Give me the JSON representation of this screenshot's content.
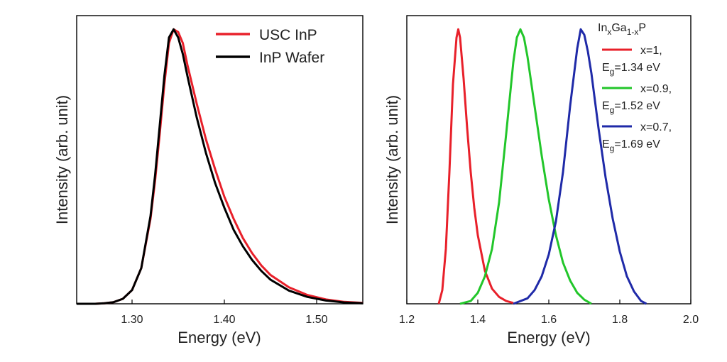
{
  "chart_data": [
    {
      "type": "line",
      "xlabel": "Energy (eV)",
      "ylabel": "Intensity (arb. unit)",
      "xlim": [
        1.24,
        1.55
      ],
      "ylim": [
        0,
        1.05
      ],
      "xticks": [
        1.3,
        1.4,
        1.5
      ],
      "xtick_labels": [
        "1.30",
        "1.40",
        "1.50"
      ],
      "yticks_shown": false,
      "legend": "top-right",
      "series": [
        {
          "name": "USC InP",
          "color": "#e8202a",
          "x": [
            1.24,
            1.26,
            1.27,
            1.28,
            1.29,
            1.3,
            1.31,
            1.32,
            1.325,
            1.33,
            1.335,
            1.34,
            1.345,
            1.35,
            1.355,
            1.36,
            1.37,
            1.38,
            1.39,
            1.4,
            1.41,
            1.42,
            1.43,
            1.44,
            1.45,
            1.47,
            1.49,
            1.51,
            1.53,
            1.55
          ],
          "y": [
            0.0,
            0.0,
            0.002,
            0.006,
            0.018,
            0.05,
            0.13,
            0.31,
            0.45,
            0.62,
            0.8,
            0.95,
            1.0,
            0.99,
            0.95,
            0.87,
            0.73,
            0.6,
            0.49,
            0.39,
            0.31,
            0.24,
            0.185,
            0.14,
            0.105,
            0.06,
            0.032,
            0.016,
            0.007,
            0.003
          ]
        },
        {
          "name": "InP Wafer",
          "color": "#000000",
          "x": [
            1.24,
            1.26,
            1.27,
            1.28,
            1.29,
            1.3,
            1.31,
            1.32,
            1.325,
            1.33,
            1.335,
            1.34,
            1.345,
            1.35,
            1.355,
            1.36,
            1.37,
            1.38,
            1.39,
            1.4,
            1.41,
            1.42,
            1.43,
            1.44,
            1.45,
            1.47,
            1.49,
            1.51,
            1.53,
            1.55
          ],
          "y": [
            0.0,
            0.0,
            0.002,
            0.006,
            0.018,
            0.05,
            0.13,
            0.32,
            0.47,
            0.65,
            0.83,
            0.97,
            1.0,
            0.97,
            0.91,
            0.83,
            0.68,
            0.55,
            0.44,
            0.35,
            0.27,
            0.21,
            0.16,
            0.12,
            0.088,
            0.048,
            0.025,
            0.012,
            0.005,
            0.002
          ]
        }
      ]
    },
    {
      "type": "line",
      "xlabel": "Energy (eV)",
      "ylabel": "Intensity (arb. unit)",
      "xlim": [
        1.2,
        2.0
      ],
      "ylim": [
        0,
        1.05
      ],
      "xticks": [
        1.2,
        1.4,
        1.6,
        1.8,
        2.0
      ],
      "xtick_labels": [
        "1.2",
        "1.4",
        "1.6",
        "1.8",
        "2.0"
      ],
      "yticks_shown": false,
      "legend": "top-right",
      "legend_title": "InxGa1-xP",
      "series": [
        {
          "name": "x=1, Eg=1.34 eV",
          "color": "#e8202a",
          "x": [
            1.29,
            1.3,
            1.31,
            1.32,
            1.33,
            1.34,
            1.345,
            1.35,
            1.36,
            1.37,
            1.38,
            1.39,
            1.4,
            1.42,
            1.44,
            1.46,
            1.48,
            1.5
          ],
          "y": [
            0.0,
            0.05,
            0.2,
            0.48,
            0.8,
            0.97,
            1.0,
            0.97,
            0.82,
            0.64,
            0.48,
            0.35,
            0.25,
            0.12,
            0.055,
            0.025,
            0.01,
            0.003
          ]
        },
        {
          "name": "x=0.9, Eg=1.52 eV",
          "color": "#22c62a",
          "x": [
            1.35,
            1.38,
            1.4,
            1.42,
            1.44,
            1.46,
            1.48,
            1.5,
            1.51,
            1.52,
            1.53,
            1.54,
            1.56,
            1.58,
            1.6,
            1.62,
            1.64,
            1.66,
            1.68,
            1.7,
            1.72
          ],
          "y": [
            0.0,
            0.01,
            0.04,
            0.1,
            0.2,
            0.37,
            0.62,
            0.88,
            0.97,
            1.0,
            0.97,
            0.9,
            0.72,
            0.54,
            0.38,
            0.25,
            0.15,
            0.085,
            0.04,
            0.015,
            0.0
          ]
        },
        {
          "name": "x=0.7, Eg=1.69 eV",
          "color": "#1f2aa8",
          "x": [
            1.5,
            1.54,
            1.56,
            1.58,
            1.6,
            1.62,
            1.64,
            1.66,
            1.68,
            1.69,
            1.7,
            1.71,
            1.72,
            1.74,
            1.76,
            1.78,
            1.8,
            1.82,
            1.84,
            1.86,
            1.875
          ],
          "y": [
            0.0,
            0.02,
            0.05,
            0.1,
            0.18,
            0.3,
            0.48,
            0.72,
            0.93,
            1.0,
            0.98,
            0.92,
            0.84,
            0.64,
            0.46,
            0.31,
            0.19,
            0.1,
            0.045,
            0.01,
            0.0
          ]
        }
      ]
    }
  ],
  "legend1": {
    "items": [
      {
        "label": "USC InP",
        "color": "#e8202a"
      },
      {
        "label": "InP Wafer",
        "color": "#000000"
      }
    ]
  },
  "legend2": {
    "title_main1": "In",
    "title_sub1": "x",
    "title_main2": "Ga",
    "title_sub2": "1-x",
    "title_main3": "P",
    "items": [
      {
        "line1": "x=1,",
        "eg_main": "E",
        "eg_sub": "g",
        "eg_val": "=1.34 eV",
        "color": "#e8202a"
      },
      {
        "line1": "x=0.9,",
        "eg_main": "E",
        "eg_sub": "g",
        "eg_val": "=1.52 eV",
        "color": "#22c62a"
      },
      {
        "line1": "x=0.7,",
        "eg_main": "E",
        "eg_sub": "g",
        "eg_val": "=1.69 eV",
        "color": "#1f2aa8"
      }
    ]
  }
}
